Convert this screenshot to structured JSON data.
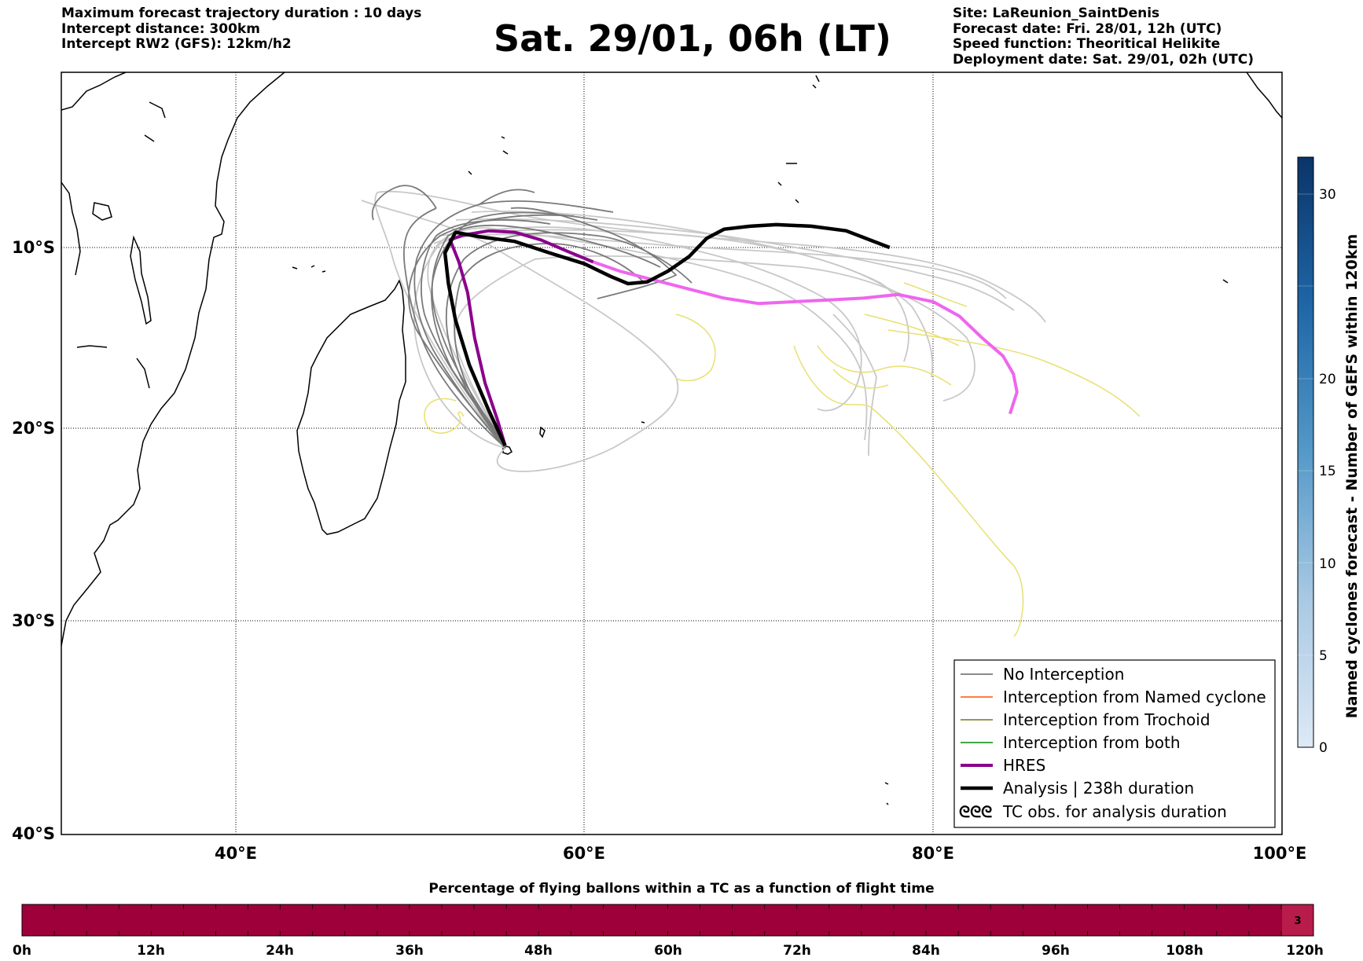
{
  "header": {
    "left_lines": [
      "Maximum forecast trajectory duration : 10 days",
      "Intercept distance: 300km",
      "Intercept RW2 (GFS):  12km/h2"
    ],
    "title": "Sat. 29/01, 06h (LT)",
    "right_lines": [
      "Site: LaReunion_SaintDenis",
      "Forecast date: Fri. 28/01, 12h (UTC)",
      "Speed function: Theoritical Helikite",
      "Deployment date: Sat. 29/01, 02h (UTC)"
    ]
  },
  "colors": {
    "no_interception": "#7a7a7a",
    "no_interception_light": "#c8c8c8",
    "named_cyclone": "#ff6a2a",
    "trochoid": "#8a8a3a",
    "both": "#2a9a2a",
    "hres": "#8b008b",
    "hres_late": "#ee66ee",
    "analysis": "#000000",
    "yellow_track": "#e8e070",
    "bottom_bar": "#9e003a",
    "bottom_bar_last": "#b81c4a"
  },
  "chart_data": [
    {
      "type": "line",
      "title": "Sat. 29/01, 06h (LT)",
      "xlabel": "",
      "ylabel": "",
      "xlim": [
        30,
        100
      ],
      "ylim": [
        -40,
        1.5
      ],
      "x_ticks": [
        40,
        60,
        80,
        100
      ],
      "x_tick_labels": [
        "40°E",
        "60°E",
        "80°E",
        "100°E"
      ],
      "y_ticks": [
        -10,
        -20,
        -30,
        -40
      ],
      "y_tick_labels": [
        "10°S",
        "20°S",
        "30°S",
        "40°S"
      ],
      "grid": true,
      "legend_position": "bottom-right",
      "legend": [
        {
          "label": "No Interception",
          "style": "no_interception"
        },
        {
          "label": "Interception from Named cyclone",
          "style": "named_cyclone"
        },
        {
          "label": "Interception from Trochoid",
          "style": "trochoid"
        },
        {
          "label": "Interception from both",
          "style": "both"
        },
        {
          "label": "HRES",
          "style": "hres"
        },
        {
          "label": "Analysis | 238h duration",
          "style": "analysis"
        },
        {
          "label": "TC obs. for analysis duration",
          "style": "tc_obs",
          "symbol": "ᘓᘓᘓ"
        }
      ],
      "launch_site": {
        "lon": 55.45,
        "lat": -20.9
      },
      "series": [
        {
          "style": "hres",
          "points": [
            [
              55.45,
              -20.9
            ],
            [
              55.0,
              -19.5
            ],
            [
              54.3,
              -17.5
            ],
            [
              53.7,
              -15.0
            ],
            [
              53.3,
              -12.5
            ],
            [
              52.8,
              -10.8
            ],
            [
              52.3,
              -9.5
            ],
            [
              53.0,
              -9.2
            ],
            [
              54.5,
              -8.9
            ],
            [
              56.0,
              -9.0
            ],
            [
              57.5,
              -9.5
            ],
            [
              59.0,
              -10.2
            ],
            [
              60.5,
              -10.8
            ]
          ]
        },
        {
          "style": "hres_late",
          "points": [
            [
              60.5,
              -10.8
            ],
            [
              62.0,
              -11.3
            ],
            [
              64.0,
              -11.8
            ],
            [
              66.0,
              -12.3
            ],
            [
              68.0,
              -12.8
            ],
            [
              70.0,
              -13.1
            ],
            [
              72.0,
              -13.0
            ],
            [
              74.0,
              -12.9
            ],
            [
              76.0,
              -12.8
            ],
            [
              78.0,
              -12.6
            ],
            [
              80.0,
              -13.0
            ],
            [
              81.5,
              -13.8
            ],
            [
              82.8,
              -15.0
            ],
            [
              84.0,
              -16.0
            ],
            [
              84.6,
              -17.0
            ],
            [
              84.8,
              -18.0
            ],
            [
              84.4,
              -19.2
            ]
          ]
        },
        {
          "style": "analysis",
          "points": [
            [
              55.45,
              -20.9
            ],
            [
              54.5,
              -19.0
            ],
            [
              53.4,
              -16.5
            ],
            [
              52.6,
              -14.0
            ],
            [
              52.2,
              -12.0
            ],
            [
              52.0,
              -10.3
            ],
            [
              52.6,
              -9.0
            ],
            [
              54.0,
              -9.3
            ],
            [
              56.0,
              -9.6
            ],
            [
              58.0,
              -10.3
            ],
            [
              60.0,
              -10.9
            ],
            [
              61.5,
              -11.6
            ],
            [
              62.5,
              -12.0
            ],
            [
              63.6,
              -11.9
            ],
            [
              64.8,
              -11.3
            ],
            [
              66.0,
              -10.5
            ],
            [
              67.0,
              -9.4
            ],
            [
              68.0,
              -8.8
            ],
            [
              69.5,
              -8.6
            ],
            [
              71.0,
              -8.5
            ],
            [
              73.0,
              -8.6
            ],
            [
              75.0,
              -8.9
            ],
            [
              77.5,
              -10.0
            ]
          ]
        }
      ]
    },
    {
      "type": "heatmap",
      "title": "Named cyclones forecast - Number of GEFS within 120km",
      "orientation": "vertical",
      "range": [
        0,
        32
      ],
      "ticks": [
        0,
        5,
        10,
        15,
        20,
        30
      ],
      "values": []
    },
    {
      "type": "heatmap",
      "title": "Percentage of flying ballons within a TC as a function of flight time",
      "xlabel": "",
      "x_tick_labels": [
        "0h",
        "12h",
        "24h",
        "36h",
        "48h",
        "60h",
        "72h",
        "84h",
        "96h",
        "108h",
        "120h"
      ],
      "xlim": [
        0,
        120
      ],
      "cells": [
        {
          "from": 0,
          "to": 117,
          "value": 0
        },
        {
          "from": 117,
          "to": 120,
          "value": 3
        }
      ],
      "annotations": [
        "3"
      ]
    }
  ]
}
